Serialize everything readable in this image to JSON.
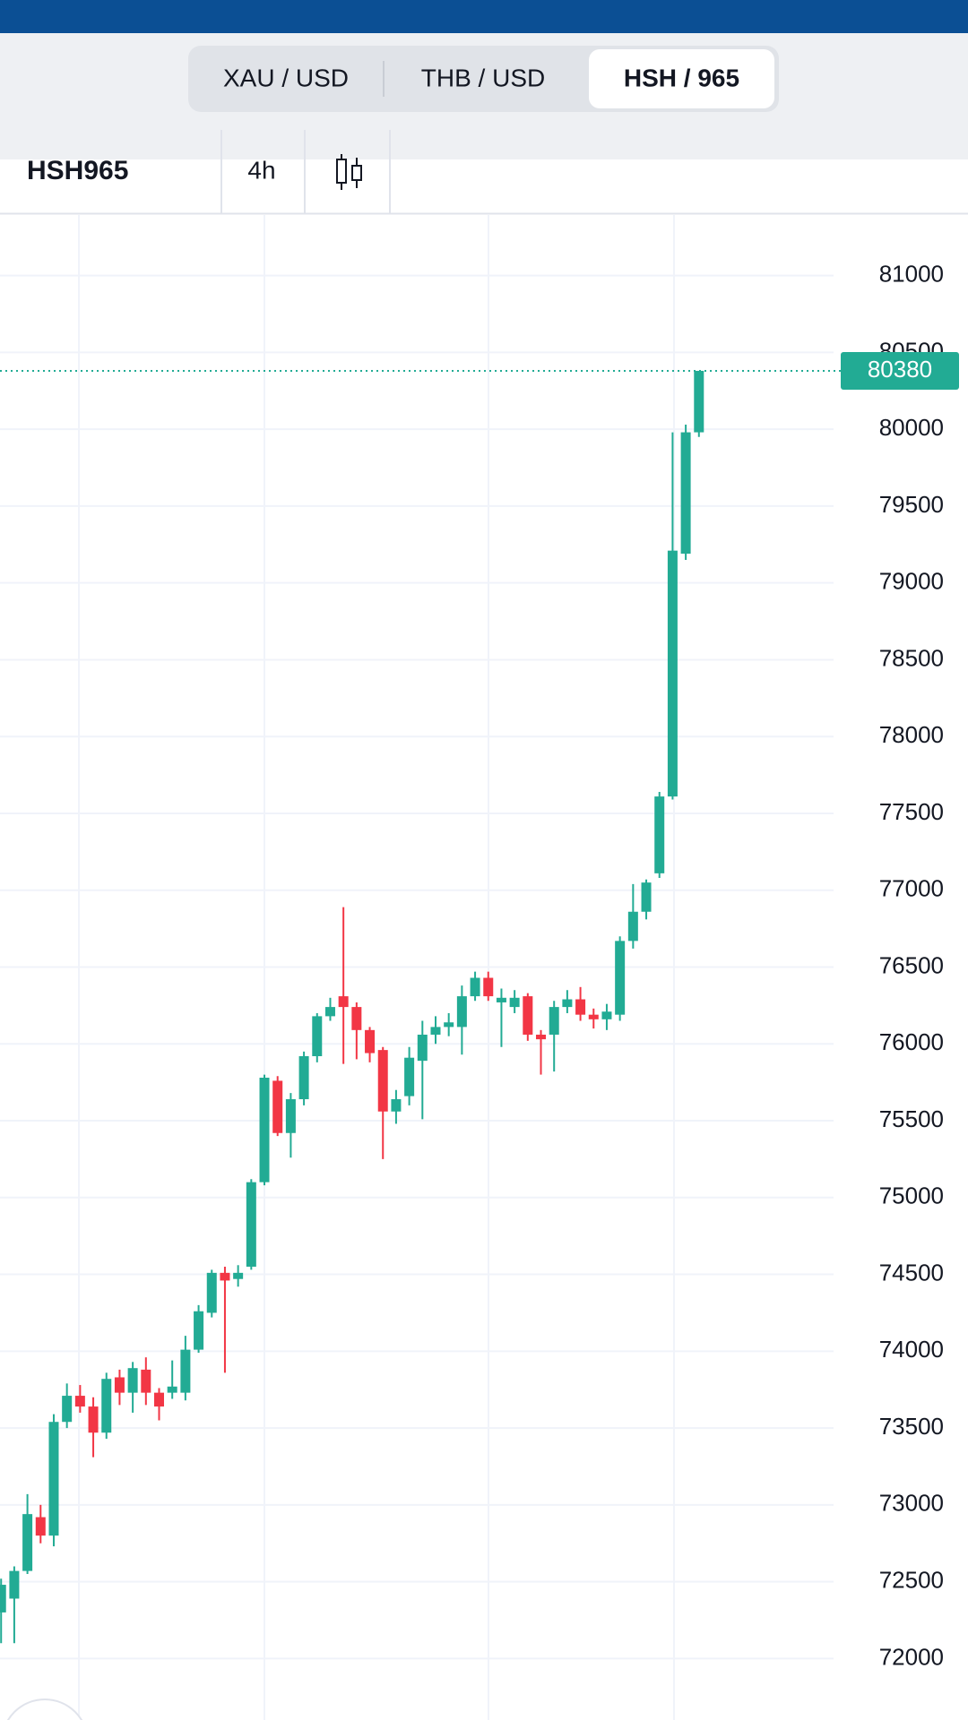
{
  "tabs": [
    "XAU / USD",
    "THB / USD",
    "HSH / 965"
  ],
  "active_tab": 2,
  "symbol": "HSH965",
  "interval": "4h",
  "chart_data": {
    "type": "candlestick",
    "up_color": "#22ab94",
    "down_color": "#f23645",
    "grid": true,
    "ylim": [
      71600,
      81400
    ],
    "yticks": [
      72000,
      72500,
      73000,
      73500,
      74000,
      74500,
      75000,
      75500,
      76000,
      76500,
      77000,
      77500,
      78000,
      78500,
      79000,
      79500,
      80000,
      80500,
      81000
    ],
    "last_price": 80380,
    "open": [
      72300,
      72390,
      72570,
      72920,
      72800,
      73540,
      73710,
      73640,
      73470,
      73830,
      73730,
      73880,
      73730,
      73730,
      73730,
      74010,
      74250,
      74510,
      74470,
      74550,
      75100,
      75760,
      75420,
      75640,
      75920,
      76180,
      76310,
      76240,
      76090,
      75960,
      75560,
      75660,
      75890,
      76060,
      76110,
      76110,
      76310,
      76430,
      76270,
      76240,
      76310,
      76060,
      76060,
      76240,
      76290,
      76190,
      76160,
      76190,
      76670,
      76860,
      77110,
      77610,
      79190,
      79980
    ],
    "high": [
      72520,
      72600,
      73070,
      73000,
      73590,
      73790,
      73780,
      73700,
      73860,
      73880,
      73930,
      73960,
      73760,
      73940,
      74100,
      74300,
      74530,
      74550,
      74560,
      75120,
      75800,
      75790,
      75680,
      75950,
      76200,
      76300,
      76890,
      76270,
      76110,
      75980,
      75700,
      75980,
      76150,
      76180,
      76200,
      76380,
      76470,
      76470,
      76360,
      76350,
      76330,
      76090,
      76280,
      76350,
      76370,
      76230,
      76260,
      76700,
      77040,
      77070,
      77640,
      79980,
      80030,
      80380
    ],
    "low": [
      72100,
      72100,
      72550,
      72750,
      72730,
      73500,
      73600,
      73310,
      73430,
      73650,
      73600,
      73650,
      73550,
      73690,
      73680,
      73990,
      74220,
      73860,
      74420,
      74530,
      75080,
      75400,
      75260,
      75600,
      75880,
      76150,
      75870,
      75900,
      75880,
      75250,
      75480,
      75600,
      75510,
      76000,
      76050,
      75930,
      76280,
      76280,
      75980,
      76200,
      76020,
      75800,
      75820,
      76200,
      76150,
      76100,
      76090,
      76150,
      76620,
      76810,
      77080,
      77590,
      79150,
      79950
    ],
    "close": [
      72480,
      72570,
      72940,
      72800,
      73540,
      73710,
      73640,
      73470,
      73820,
      73730,
      73890,
      73730,
      73640,
      73770,
      74010,
      74260,
      74510,
      74460,
      74510,
      75100,
      75780,
      75420,
      75640,
      75920,
      76180,
      76240,
      76240,
      76090,
      75940,
      75560,
      75640,
      75910,
      76060,
      76110,
      76140,
      76310,
      76430,
      76310,
      76300,
      76300,
      76060,
      76030,
      76240,
      76290,
      76190,
      76160,
      76210,
      76670,
      76860,
      77050,
      77610,
      79210,
      79980,
      80380
    ]
  }
}
